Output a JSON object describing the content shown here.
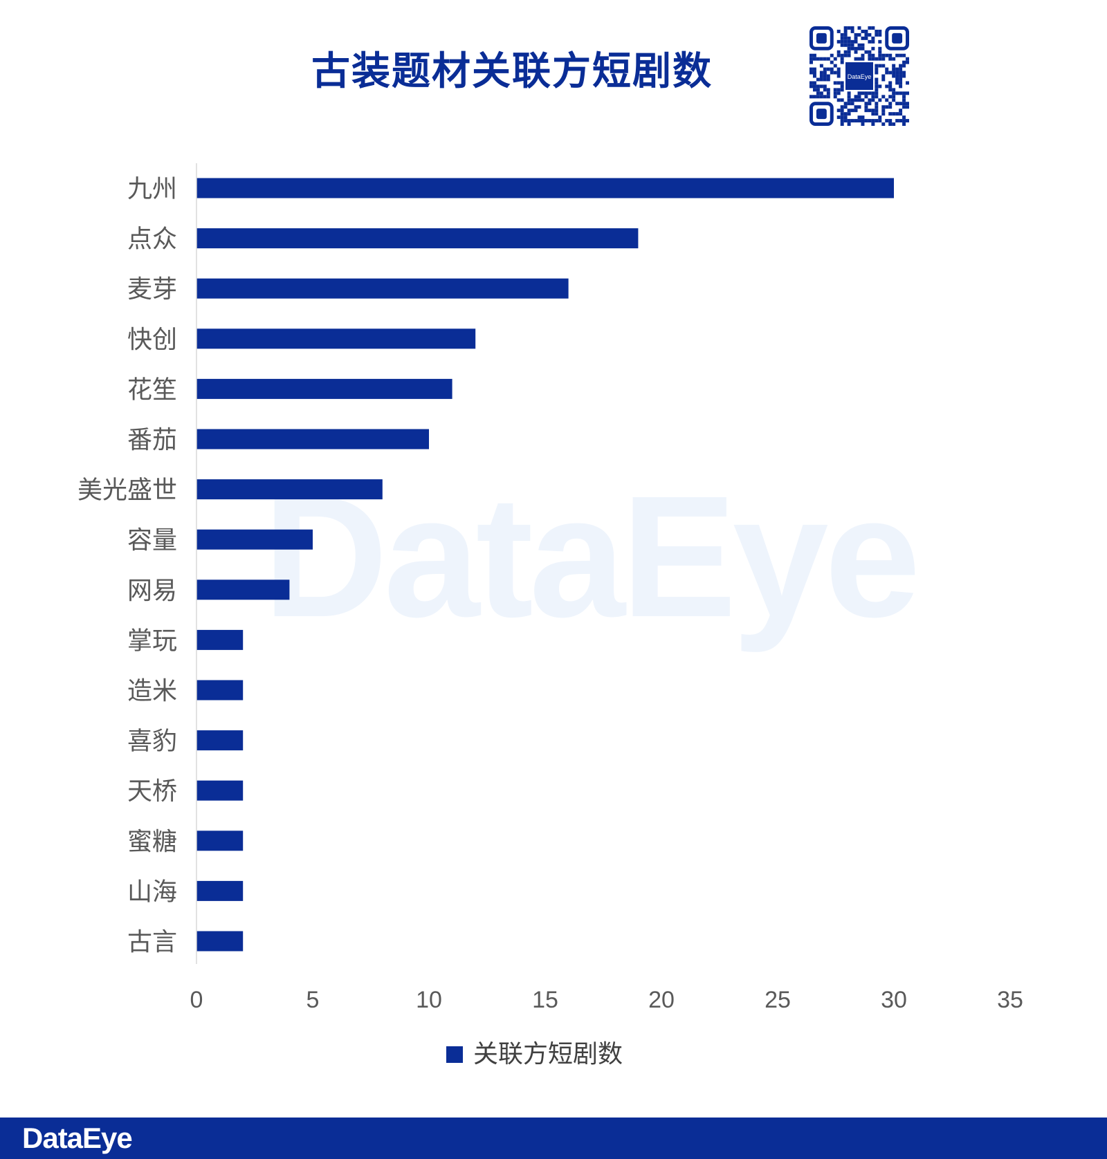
{
  "title": "古装题材关联方短剧数",
  "brand": {
    "watermark": "DataEye",
    "footer": "DataEye",
    "qr_center": "DataEye"
  },
  "colors": {
    "bar": "#0a2d96",
    "title": "#0a2d96",
    "axis_text": "#595959",
    "footer_bg": "#0a2d96"
  },
  "chart_data": {
    "type": "bar",
    "orientation": "horizontal",
    "title": "古装题材关联方短剧数",
    "categories": [
      "九州",
      "点众",
      "麦芽",
      "快创",
      "花笙",
      "番茄",
      "美光盛世",
      "容量",
      "网易",
      "掌玩",
      "造米",
      "喜豹",
      "天桥",
      "蜜糖",
      "山海",
      "古言"
    ],
    "series": [
      {
        "name": "关联方短剧数",
        "values": [
          30,
          19,
          16,
          12,
          11,
          10,
          8,
          5,
          4,
          2,
          2,
          2,
          2,
          2,
          2,
          2
        ]
      }
    ],
    "xlim": [
      0,
      35
    ],
    "xticks": [
      "0",
      "5",
      "10",
      "15",
      "20",
      "25",
      "30",
      "35"
    ],
    "grid": false,
    "legend": "bottom-center"
  }
}
